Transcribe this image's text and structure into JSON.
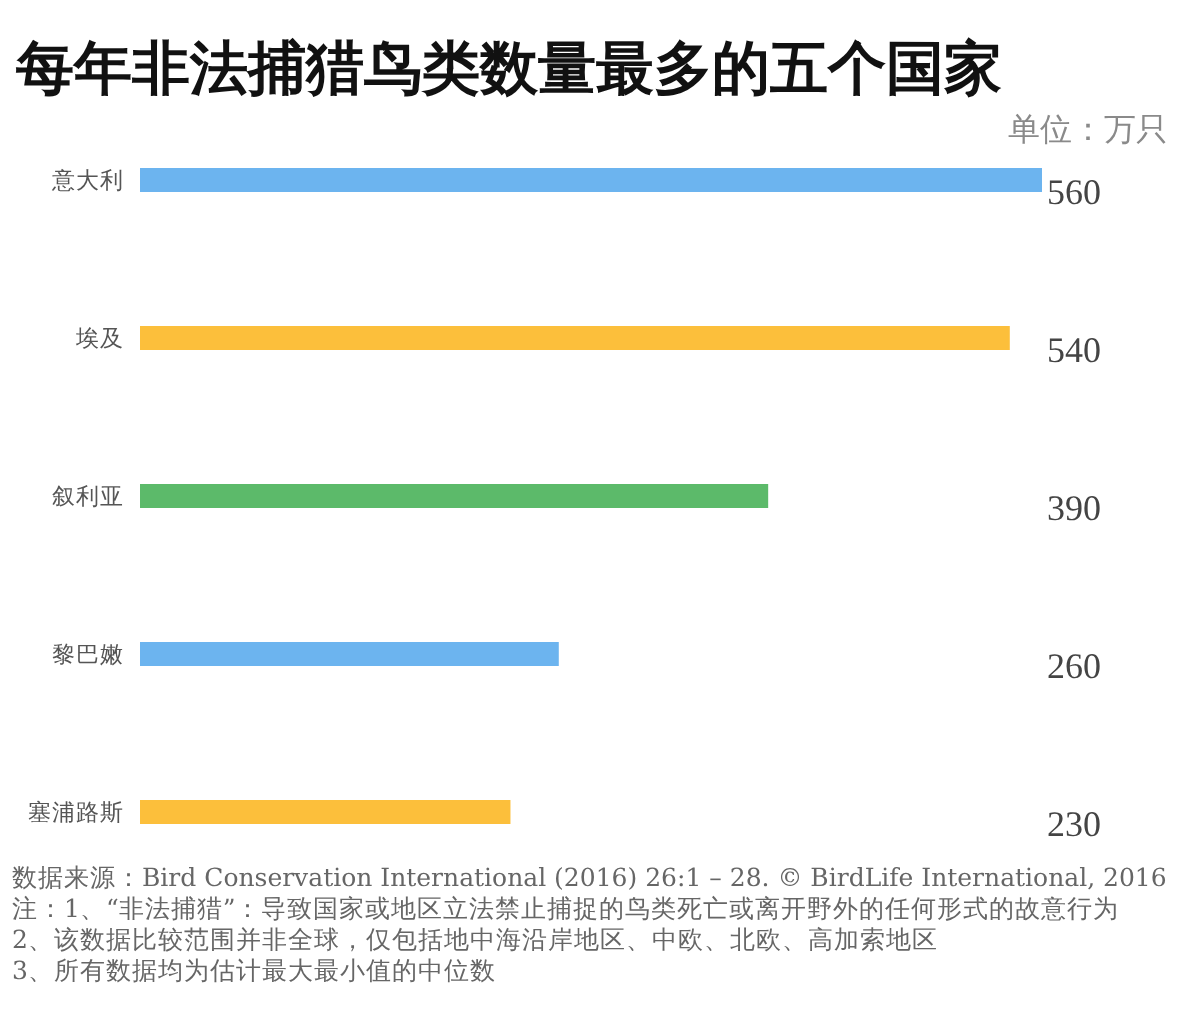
{
  "chart_data": {
    "type": "bar",
    "orientation": "horizontal",
    "title": "每年非法捕猎鸟类数量最多的五个国家",
    "subtitle": "单位：万只",
    "categories": [
      "意大利",
      "埃及",
      "叙利亚",
      "黎巴嫩",
      "塞浦路斯"
    ],
    "values": [
      560,
      540,
      390,
      260,
      230
    ],
    "colors": [
      "#6cb4ef",
      "#fcbf3b",
      "#5cba6a",
      "#6cb4ef",
      "#fcbf3b"
    ],
    "data_labels": true,
    "annotations": [
      "数据来源：Bird Conservation International (2016) 26:1 – 28. © BirdLife International, 2016",
      "注：1、“非法捕猎”：导致国家或地区立法禁止捕捉的鸟类死亡或离开野外的任何形式的故意行为",
      "2、该数据比较范围并非全球，仅包括地中海沿岸地区、中欧、北欧、高加索地区",
      "3、所有数据均为估计最大最小值的中位数"
    ]
  }
}
